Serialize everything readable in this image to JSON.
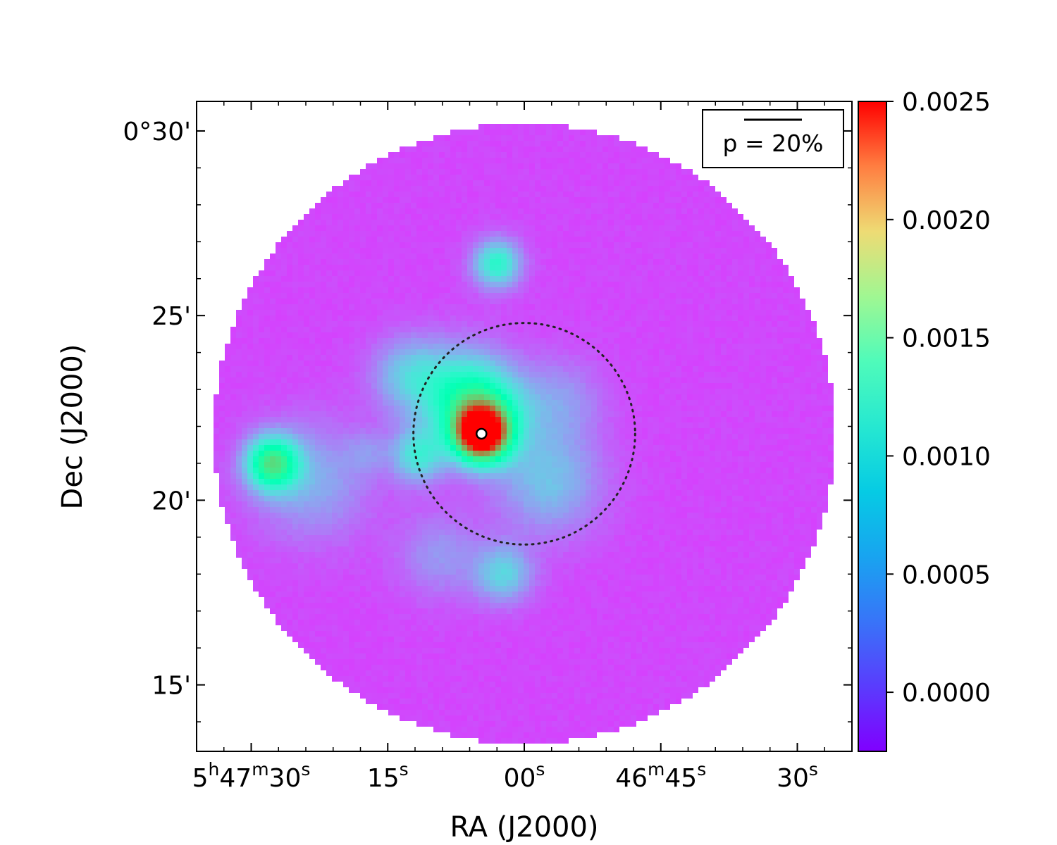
{
  "chart_data": {
    "type": "heatmap",
    "xlabel": "RA (J2000)",
    "ylabel": "Dec (J2000)",
    "x_ticks": [
      {
        "hms": [
          "5",
          "h",
          "47",
          "m",
          "30",
          "s"
        ]
      },
      {
        "hms": [
          "15",
          "s"
        ]
      },
      {
        "hms": [
          "00",
          "s"
        ]
      },
      {
        "hms": [
          "46",
          "m",
          "45",
          "s"
        ]
      },
      {
        "hms": [
          "30",
          "s"
        ]
      }
    ],
    "x_tick_seconds": [
      30,
      15,
      0,
      -15,
      -30
    ],
    "y_ticks": [
      "0°30'",
      "25'",
      "20'",
      "15'"
    ],
    "y_tick_arcmin": [
      30,
      25,
      20,
      15
    ],
    "xlim_seconds": [
      36,
      -36
    ],
    "ylim_arcmin": [
      13.2,
      30.8
    ],
    "colorbar": {
      "colormap": "rainbow",
      "vmin": -0.00025,
      "vmax": 0.0025,
      "ticks": [
        "0.0000",
        "0.0005",
        "0.0010",
        "0.0015",
        "0.0020",
        "0.0025"
      ],
      "tick_values": [
        0.0,
        0.0005,
        0.001,
        0.0015,
        0.002,
        0.0025
      ]
    },
    "legend": {
      "label": "p = 20%",
      "placement": "top-right"
    },
    "map": {
      "center_seconds": 0,
      "center_arcmin": 21.8,
      "radius_arcmin": 8.4,
      "background_value": 0.0
    },
    "sources": [
      {
        "ra_s": 4.7,
        "dec_arcmin": 21.8,
        "peak": 0.0026,
        "sigma": 0.5
      },
      {
        "ra_s": 6.7,
        "dec_arcmin": 22.8,
        "peak": 0.00085,
        "sigma": 0.9
      },
      {
        "ra_s": 4.0,
        "dec_arcmin": 22.3,
        "peak": 0.0007,
        "sigma": 0.8
      },
      {
        "ra_s": 3.0,
        "dec_arcmin": 26.4,
        "peak": 0.0009,
        "sigma": 0.45
      },
      {
        "ra_s": 27.7,
        "dec_arcmin": 21.0,
        "peak": 0.0014,
        "sigma": 0.5
      },
      {
        "ra_s": 11.7,
        "dec_arcmin": 21.2,
        "peak": 0.0007,
        "sigma": 0.5
      },
      {
        "ra_s": 12.7,
        "dec_arcmin": 23.4,
        "peak": 0.0005,
        "sigma": 0.7
      },
      {
        "ra_s": 2.3,
        "dec_arcmin": 18.0,
        "peak": 0.0006,
        "sigma": 0.55
      },
      {
        "ra_s": -2.7,
        "dec_arcmin": 20.5,
        "peak": 0.0005,
        "sigma": 1.0
      },
      {
        "ra_s": 9.3,
        "dec_arcmin": 18.5,
        "peak": 0.0003,
        "sigma": 0.8
      },
      {
        "ra_s": 23.3,
        "dec_arcmin": 20.5,
        "peak": 0.0004,
        "sigma": 1.1
      },
      {
        "ra_s": -4.0,
        "dec_arcmin": 22.7,
        "peak": 0.0003,
        "sigma": 0.8
      },
      {
        "ra_s": 17.3,
        "dec_arcmin": 21.3,
        "peak": 0.0002,
        "sigma": 0.4
      }
    ],
    "annotations": {
      "dotted_circle": {
        "ra_s": 0,
        "dec_arcmin": 21.8,
        "radius_arcmin": 3.0
      },
      "marker": {
        "ra_s": 4.7,
        "dec_arcmin": 21.8,
        "shape": "circle"
      }
    }
  }
}
